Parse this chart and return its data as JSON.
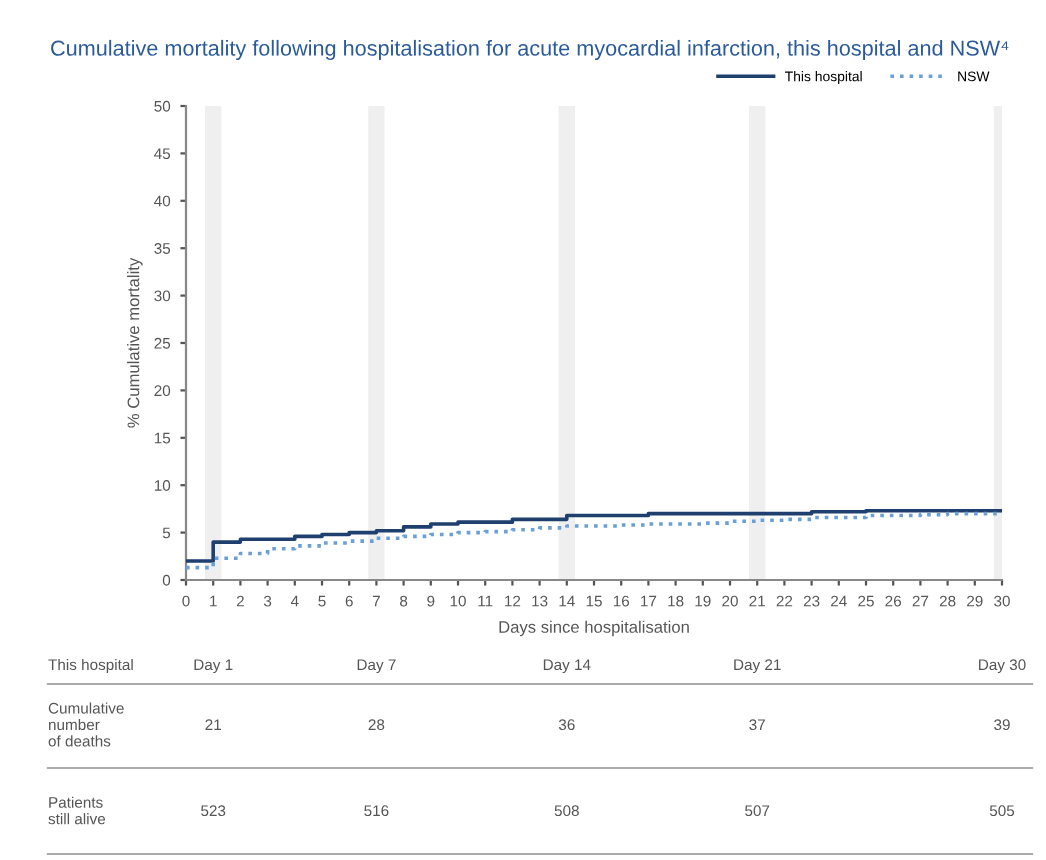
{
  "chart_data": {
    "type": "step",
    "title": "Cumulative mortality following hospitalisation for acute myocardial infarction, this hospital and NSW⁴",
    "xlabel": "Days since hospitalisation",
    "ylabel": "% Cumulative mortality",
    "xlim": [
      0,
      30
    ],
    "xticks": [
      0,
      1,
      2,
      3,
      4,
      5,
      6,
      7,
      8,
      9,
      10,
      11,
      12,
      13,
      14,
      15,
      16,
      17,
      18,
      19,
      20,
      21,
      22,
      23,
      24,
      25,
      26,
      27,
      28,
      29,
      30
    ],
    "ylim": [
      0,
      50
    ],
    "yticks": [
      0,
      5,
      10,
      15,
      20,
      25,
      30,
      35,
      40,
      45,
      50
    ],
    "series": [
      {
        "name": "This hospital",
        "color": "#1f3f6e",
        "line_style": "solid",
        "x": [
          0,
          1,
          2,
          4,
          5,
          6,
          7,
          8,
          9,
          10,
          12,
          14,
          17,
          23,
          25,
          30
        ],
        "values": [
          2.0,
          4.0,
          4.3,
          4.6,
          4.8,
          5.0,
          5.2,
          5.6,
          5.9,
          6.1,
          6.4,
          6.8,
          7.0,
          7.2,
          7.3,
          7.3
        ]
      },
      {
        "name": "NSW",
        "color": "#6a9fd8",
        "line_style": "dotted",
        "x": [
          0,
          1,
          2,
          3,
          4,
          5,
          6,
          7,
          8,
          9,
          10,
          11,
          12,
          13,
          14,
          16,
          17,
          19,
          20,
          21,
          22,
          23,
          25,
          27,
          28,
          30
        ],
        "values": [
          1.3,
          2.3,
          2.8,
          3.3,
          3.6,
          3.9,
          4.1,
          4.4,
          4.6,
          4.8,
          5.0,
          5.1,
          5.3,
          5.5,
          5.7,
          5.8,
          5.9,
          6.0,
          6.2,
          6.3,
          6.4,
          6.6,
          6.8,
          6.9,
          7.0,
          7.1
        ]
      }
    ],
    "bands": [
      {
        "axis": "x",
        "from": 0.7,
        "to": 1.3,
        "color": "#efefef"
      },
      {
        "axis": "x",
        "from": 6.7,
        "to": 7.3,
        "color": "#efefef"
      },
      {
        "axis": "x",
        "from": 13.7,
        "to": 14.3,
        "color": "#efefef"
      },
      {
        "axis": "x",
        "from": 20.7,
        "to": 21.3,
        "color": "#efefef"
      },
      {
        "axis": "x",
        "from": 29.7,
        "to": 30.3,
        "color": "#efefef"
      }
    ],
    "annotations": [
      "This hospital",
      "Day 1",
      "Day 7",
      "Day 14",
      "Day 21",
      "Day 30",
      "Cumulative\nnumber\nof deaths",
      "21",
      "28",
      "36",
      "37",
      "39",
      "Patients\nstill alive",
      "523",
      "516",
      "508",
      "507",
      "505"
    ],
    "grid": false,
    "legend": "top right"
  }
}
